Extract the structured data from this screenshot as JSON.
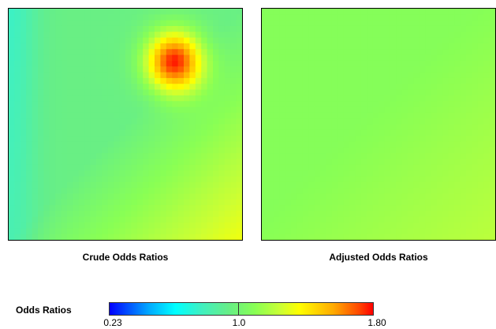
{
  "chart_data": [
    {
      "type": "heatmap",
      "title": "Crude Odds Ratios",
      "colorscale": [
        "#0000ff",
        "#00aaff",
        "#00ffff",
        "#66ee88",
        "#ffff00",
        "#ff8800",
        "#ff0000"
      ],
      "colorbar_range": [
        0.23,
        1.8
      ],
      "description_features": {
        "base_value": 0.95,
        "hotspot": {
          "peak_value": 1.75
        }
      }
    },
    {
      "type": "heatmap",
      "title": "Adjusted Odds Ratios",
      "colorscale": [
        "#0000ff",
        "#00aaff",
        "#00ffff",
        "#66ee88",
        "#ffff00",
        "#ff8800",
        "#ff0000"
      ],
      "colorbar_range": [
        0.23,
        1.8
      ]
    }
  ],
  "legend": {
    "title": "Odds Ratios",
    "ticks": [
      "0.23",
      "1.0",
      "1.80"
    ]
  }
}
